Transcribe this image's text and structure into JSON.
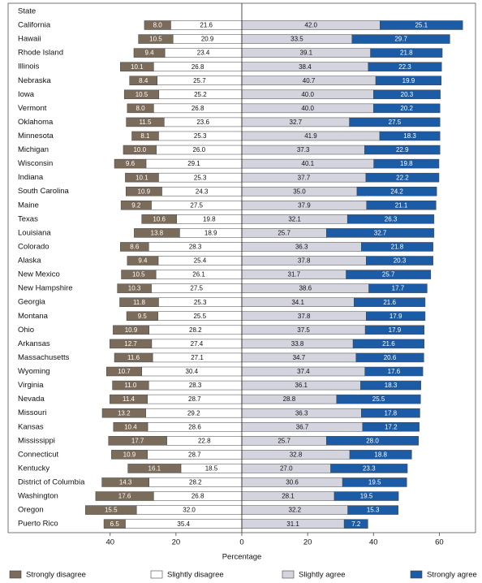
{
  "chart_data": {
    "type": "diverging_bar",
    "category_header": "State",
    "xlabel": "Percentage",
    "xlim": [
      -71,
      71
    ],
    "xticks": [
      {
        "value": -40,
        "label": "40"
      },
      {
        "value": -20,
        "label": "20"
      },
      0,
      20,
      40,
      60
    ],
    "legend": "bottom",
    "categories": [
      "California",
      "Hawaii",
      "Rhode Island",
      "Illinois",
      "Nebraska",
      "Iowa",
      "Vermont",
      "Oklahoma",
      "Minnesota",
      "Michigan",
      "Wisconsin",
      "Indiana",
      "South Carolina",
      "Maine",
      "Texas",
      "Louisiana",
      "Colorado",
      "Alaska",
      "New Mexico",
      "New Hampshire",
      "Georgia",
      "Montana",
      "Ohio",
      "Arkansas",
      "Massachusetts",
      "Wyoming",
      "Virginia",
      "Nevada",
      "Missouri",
      "Kansas",
      "Mississippi",
      "Connecticut",
      "Kentucky",
      "District of Columbia",
      "Washington",
      "Oregon",
      "Puerto Rico"
    ],
    "series": [
      {
        "name": "Strongly disagree",
        "color": "#7a6b5a",
        "values": [
          8.0,
          10.5,
          9.4,
          10.1,
          8.4,
          10.5,
          8.0,
          11.5,
          8.1,
          10.0,
          9.6,
          10.1,
          10.9,
          9.2,
          10.6,
          13.8,
          8.6,
          9.4,
          10.5,
          10.3,
          11.8,
          9.5,
          10.9,
          12.7,
          11.6,
          10.7,
          11.0,
          11.4,
          13.2,
          10.4,
          17.7,
          10.9,
          16.1,
          14.3,
          17.6,
          15.5,
          6.5
        ],
        "value_labels": [
          "8.0",
          "10.5",
          "9.4",
          "10.1",
          "8.4",
          "10.5",
          "8.0",
          "11.5",
          "8.1",
          "10.0",
          "9.6",
          "10.1",
          "10.9",
          "9.2",
          "10.6",
          "13.8",
          "8.6",
          "9.4",
          "10.5",
          "10.3",
          "11.8",
          "9.5",
          "10.9",
          "12.7",
          "11.6",
          "10.7",
          "11.0",
          "11.4",
          "13.2",
          "10.4",
          "17.7",
          "10.9",
          "16.1",
          "14.3",
          "17.6",
          "15.5",
          "6.5"
        ]
      },
      {
        "name": "Slightly disagree",
        "color": "#ffffff",
        "values": [
          21.6,
          20.9,
          23.4,
          26.8,
          25.7,
          25.2,
          26.8,
          23.6,
          25.3,
          26.0,
          29.1,
          25.3,
          24.3,
          27.5,
          19.8,
          18.9,
          28.3,
          25.4,
          26.1,
          27.5,
          25.3,
          25.5,
          28.2,
          27.4,
          27.1,
          30.4,
          28.3,
          28.7,
          29.2,
          28.6,
          22.8,
          28.7,
          18.5,
          28.2,
          26.8,
          32.0,
          35.4
        ],
        "value_labels": [
          "21.6",
          "20.9",
          "23.4",
          "26.8",
          "25.7",
          "25.2",
          "26.8",
          "23.6",
          "25.3",
          "26.0",
          "29.1",
          "25.3",
          "24.3",
          "27.5",
          "19.8",
          "18.9",
          "28.3",
          "25.4",
          "26.1",
          "27.5",
          "25.3",
          "25.5",
          "28.2",
          "27.4",
          "27.1",
          "30.4",
          "28.3",
          "28.7",
          "29.2",
          "28.6",
          "22.8",
          "28.7",
          "18.5",
          "28.2",
          "26.8",
          "32.0",
          "35.4"
        ]
      },
      {
        "name": "Slightly agree",
        "color": "#d4d4de",
        "values": [
          42.0,
          33.5,
          39.1,
          38.4,
          40.7,
          40.0,
          40.0,
          32.7,
          41.9,
          37.3,
          40.1,
          37.7,
          35.0,
          37.9,
          32.1,
          25.7,
          36.3,
          37.8,
          31.7,
          38.6,
          34.1,
          37.8,
          37.5,
          33.8,
          34.7,
          37.4,
          36.1,
          28.8,
          36.3,
          36.7,
          25.7,
          32.8,
          27.0,
          30.6,
          28.1,
          32.2,
          31.1
        ],
        "value_labels": [
          "42.0",
          "33.5",
          "39.1",
          "38.4",
          "40.7",
          "40.0",
          "40.0",
          "32.7",
          "41.9",
          "37.3",
          "40.1",
          "37.7",
          "35.0",
          "37.9",
          "32.1",
          "25.7",
          "36.3",
          "37.8",
          "31.7",
          "38.6",
          "34.1",
          "37.8",
          "37.5",
          "33.8",
          "34.7",
          "37.4",
          "36.1",
          "28.8",
          "36.3",
          "36.7",
          "25.7",
          "32.8",
          "27.0",
          "30.6",
          "28.1",
          "32.2",
          "31.1"
        ]
      },
      {
        "name": "Strongly agree",
        "color": "#1c5ca6",
        "values": [
          25.1,
          29.7,
          21.8,
          22.3,
          19.9,
          20.3,
          20.2,
          27.5,
          18.3,
          22.9,
          19.8,
          22.2,
          24.2,
          21.1,
          26.3,
          32.7,
          21.8,
          20.3,
          25.7,
          17.7,
          21.6,
          17.9,
          17.9,
          21.6,
          20.6,
          17.6,
          18.3,
          25.5,
          17.8,
          17.2,
          28.0,
          18.8,
          23.3,
          19.5,
          19.5,
          15.3,
          7.2
        ],
        "value_labels": [
          "25.1",
          "29.7",
          "21.8",
          "22.3",
          "19.9",
          "20.3",
          "20.2",
          "27.5",
          "18.3",
          "22.9",
          "19.8",
          "22.2",
          "24.2",
          "21.1",
          "26.3",
          "32.7",
          "21.8",
          "20.3",
          "25.7",
          "17.7",
          "21.6",
          "17.9",
          "17.9",
          "21.6",
          "20.6",
          "17.6",
          "18.3",
          "25.5",
          "17.8",
          "17.2",
          "28.0",
          "18.8",
          "23.3",
          "19.5",
          "19.5",
          "15.3",
          "7.2"
        ]
      }
    ]
  }
}
